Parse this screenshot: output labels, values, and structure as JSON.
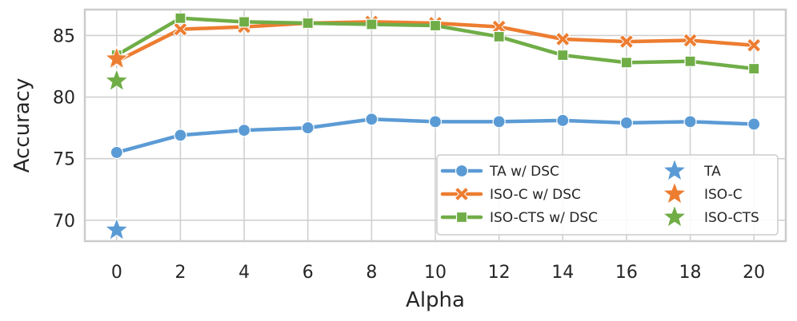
{
  "chart_data": {
    "type": "line",
    "title": "",
    "xlabel": "Alpha",
    "ylabel": "Accuracy",
    "x": [
      0,
      2,
      4,
      6,
      8,
      10,
      12,
      14,
      16,
      18,
      20
    ],
    "xlim": [
      -1,
      21
    ],
    "ylim": [
      68.3,
      87.1
    ],
    "xticks": [
      0,
      2,
      4,
      6,
      8,
      10,
      12,
      14,
      16,
      18,
      20
    ],
    "yticks": [
      70,
      75,
      80,
      85
    ],
    "grid": true,
    "legend_position": "lower-right",
    "series": [
      {
        "name": "TA w/ DSC",
        "color": "#5b9bd5",
        "marker": "circle",
        "values": [
          75.5,
          76.9,
          77.3,
          77.5,
          78.2,
          78.0,
          78.0,
          78.1,
          77.9,
          78.0,
          77.8
        ]
      },
      {
        "name": "ISO-C w/ DSC",
        "color": "#ed7d31",
        "marker": "x",
        "values": [
          82.9,
          85.5,
          85.7,
          86.0,
          86.1,
          86.0,
          85.7,
          84.7,
          84.5,
          84.6,
          84.2
        ]
      },
      {
        "name": "ISO-CTS w/ DSC",
        "color": "#70ad47",
        "marker": "square",
        "values": [
          83.4,
          86.4,
          86.1,
          86.0,
          85.9,
          85.8,
          84.9,
          83.4,
          82.8,
          82.9,
          82.3
        ]
      }
    ],
    "points": [
      {
        "name": "TA",
        "color": "#5b9bd5",
        "marker": "star",
        "x": 0,
        "y": 69.2
      },
      {
        "name": "ISO-C",
        "color": "#ed7d31",
        "marker": "star",
        "x": 0,
        "y": 83.1
      },
      {
        "name": "ISO-CTS",
        "color": "#70ad47",
        "marker": "star",
        "x": 0,
        "y": 81.3
      }
    ]
  }
}
